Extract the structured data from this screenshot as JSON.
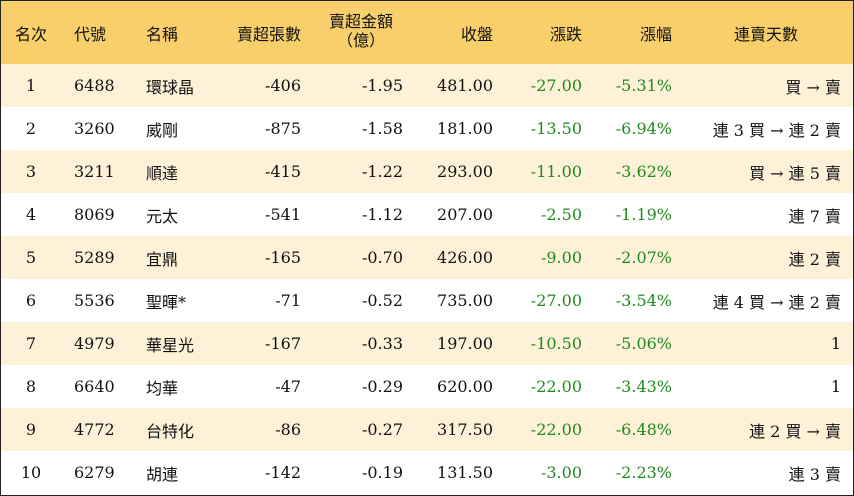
{
  "headers": {
    "rank": "名次",
    "code": "代號",
    "name": "名稱",
    "sell_sheets": "賣超張數",
    "sell_amount_line1": "賣超金額",
    "sell_amount_line2": "（億）",
    "close": "收盤",
    "change": "漲跌",
    "pct": "漲幅",
    "streak": "連賣天數"
  },
  "rows": [
    {
      "rank": "1",
      "code": "6488",
      "name": "環球晶",
      "sheets": "-406",
      "amount": "-1.95",
      "close": "481.00",
      "change": "-27.00",
      "pct": "-5.31%",
      "streak": "買 → 賣"
    },
    {
      "rank": "2",
      "code": "3260",
      "name": "威剛",
      "sheets": "-875",
      "amount": "-1.58",
      "close": "181.00",
      "change": "-13.50",
      "pct": "-6.94%",
      "streak": "連 3 買 → 連 2 賣"
    },
    {
      "rank": "3",
      "code": "3211",
      "name": "順達",
      "sheets": "-415",
      "amount": "-1.22",
      "close": "293.00",
      "change": "-11.00",
      "pct": "-3.62%",
      "streak": "買 → 連 5 賣"
    },
    {
      "rank": "4",
      "code": "8069",
      "name": "元太",
      "sheets": "-541",
      "amount": "-1.12",
      "close": "207.00",
      "change": "-2.50",
      "pct": "-1.19%",
      "streak": "連 7 賣"
    },
    {
      "rank": "5",
      "code": "5289",
      "name": "宜鼎",
      "sheets": "-165",
      "amount": "-0.70",
      "close": "426.00",
      "change": "-9.00",
      "pct": "-2.07%",
      "streak": "連 2 賣"
    },
    {
      "rank": "6",
      "code": "5536",
      "name": "聖暉*",
      "sheets": "-71",
      "amount": "-0.52",
      "close": "735.00",
      "change": "-27.00",
      "pct": "-3.54%",
      "streak": "連 4 買 → 連 2 賣"
    },
    {
      "rank": "7",
      "code": "4979",
      "name": "華星光",
      "sheets": "-167",
      "amount": "-0.33",
      "close": "197.00",
      "change": "-10.50",
      "pct": "-5.06%",
      "streak": "1"
    },
    {
      "rank": "8",
      "code": "6640",
      "name": "均華",
      "sheets": "-47",
      "amount": "-0.29",
      "close": "620.00",
      "change": "-22.00",
      "pct": "-3.43%",
      "streak": "1"
    },
    {
      "rank": "9",
      "code": "4772",
      "name": "台特化",
      "sheets": "-86",
      "amount": "-0.27",
      "close": "317.50",
      "change": "-22.00",
      "pct": "-6.48%",
      "streak": "連 2 買 → 賣"
    },
    {
      "rank": "10",
      "code": "6279",
      "name": "胡連",
      "sheets": "-142",
      "amount": "-0.19",
      "close": "131.50",
      "change": "-3.00",
      "pct": "-2.23%",
      "streak": "連 3 賣"
    }
  ],
  "colors": {
    "header_bg": "#f8cf6a",
    "odd_row_bg": "#fdf1d8",
    "negative_change": "#1f8a1f"
  }
}
